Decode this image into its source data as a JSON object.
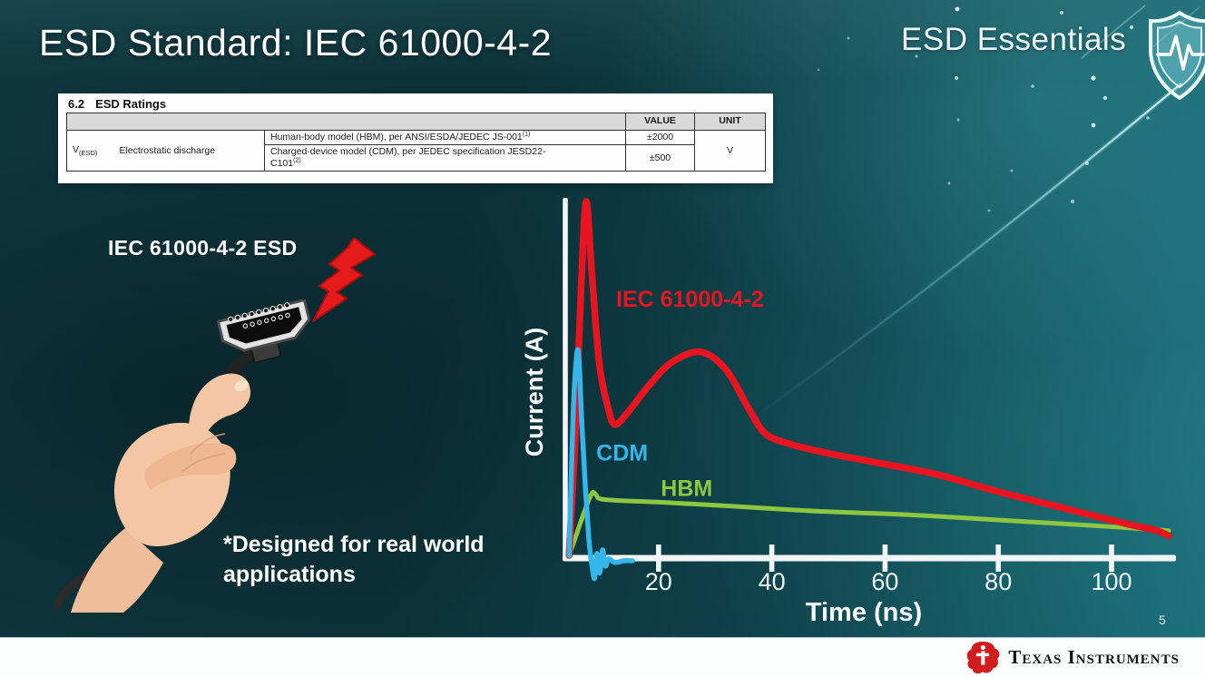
{
  "slide": {
    "title": "ESD Standard: IEC 61000-4-2",
    "page_number": "5"
  },
  "brand": {
    "series_title": "ESD Essentials"
  },
  "datasheet_table": {
    "section_number": "6.2",
    "section_title": "ESD Ratings",
    "value_header": "VALUE",
    "unit_header": "UNIT",
    "symbol": "V",
    "symbol_subscript": "(ESD)",
    "parameter": "Electrostatic discharge",
    "rows": [
      {
        "description": "Human-body model (HBM), per ANSI/ESDA/JEDEC JS-001",
        "footnote": "(1)",
        "value": "±2000"
      },
      {
        "description": "Charged-device model (CDM), per JEDEC specification JESD22-",
        "description_line2": "C101",
        "footnote": "(2)",
        "value": "±500"
      }
    ],
    "unit": "V"
  },
  "left_visual": {
    "label": "IEC 61000-4-2 ESD",
    "note_line1": "*Designed for real world",
    "note_line2": "applications"
  },
  "chart_data": {
    "type": "line",
    "title": "",
    "xlabel": "Time (ns)",
    "ylabel": "Current (A)",
    "x_ticks": [
      20,
      40,
      60,
      80,
      100
    ],
    "xlim": [
      0,
      110
    ],
    "ylim_relative": [
      -1,
      10.5
    ],
    "grid": false,
    "legend_position": "inline-labels",
    "series": [
      {
        "name": "IEC 61000-4-2",
        "color": "#e8141f",
        "width": 7.5,
        "points": [
          [
            4.2,
            0
          ],
          [
            5.3,
            3.4
          ],
          [
            6.3,
            7.5
          ],
          [
            7.2,
            10
          ],
          [
            8.2,
            8
          ],
          [
            9.5,
            5.45
          ],
          [
            11.1,
            4.15
          ],
          [
            12.3,
            3.7
          ],
          [
            14.6,
            4.05
          ],
          [
            18.3,
            4.8
          ],
          [
            22.3,
            5.45
          ],
          [
            27.4,
            5.75
          ],
          [
            31.9,
            5.25
          ],
          [
            35.9,
            4.15
          ],
          [
            38.8,
            3.45
          ],
          [
            43.1,
            3.15
          ],
          [
            49.5,
            2.9
          ],
          [
            57.5,
            2.65
          ],
          [
            68.8,
            2.3
          ],
          [
            80,
            1.8
          ],
          [
            91.2,
            1.35
          ],
          [
            102.4,
            0.9
          ],
          [
            108,
            0.7
          ],
          [
            110.1,
            0.55
          ]
        ]
      },
      {
        "name": "HBM",
        "color": "#8dc63f",
        "width": 5,
        "points": [
          [
            4.2,
            0
          ],
          [
            5.3,
            0.5
          ],
          [
            6.7,
            1.15
          ],
          [
            8.2,
            1.75
          ],
          [
            9,
            1.7
          ],
          [
            9.6,
            1.6
          ],
          [
            12.7,
            1.55
          ],
          [
            20.7,
            1.5
          ],
          [
            31.9,
            1.4
          ],
          [
            47.9,
            1.25
          ],
          [
            63.9,
            1.15
          ],
          [
            80,
            1
          ],
          [
            96,
            0.85
          ],
          [
            110.1,
            0.7
          ]
        ]
      },
      {
        "name": "CDM",
        "color": "#35b6ea",
        "width": 5.5,
        "points": [
          [
            4.2,
            0
          ],
          [
            4.6,
            2.35
          ],
          [
            5.1,
            4.65
          ],
          [
            5.8,
            5.8
          ],
          [
            6.4,
            3.9
          ],
          [
            7.1,
            1.85
          ],
          [
            7.7,
            0.45
          ],
          [
            8.2,
            -0.25
          ],
          [
            8.7,
            -0.65
          ],
          [
            9.1,
            0.05
          ],
          [
            9.6,
            -0.5
          ],
          [
            10.1,
            0.15
          ],
          [
            10.6,
            -0.3
          ],
          [
            11.2,
            -0.1
          ],
          [
            12.3,
            -0.2
          ],
          [
            13.9,
            -0.15
          ],
          [
            15.4,
            -0.15
          ]
        ]
      }
    ],
    "annotations": [
      {
        "text": "IEC 61000-4-2",
        "color": "#e8141f",
        "t": 12.5,
        "i": 7.2
      },
      {
        "text": "CDM",
        "color": "#35b6ea",
        "t": 9.0,
        "i": 2.85
      },
      {
        "text": "HBM",
        "color": "#8dc63f",
        "t": 20.4,
        "i": 1.85
      }
    ]
  },
  "footer": {
    "brand": "Texas Instruments"
  },
  "colors": {
    "slide_background": "#0d3840",
    "accent_red": "#e8141f",
    "accent_blue": "#35b6ea",
    "accent_green": "#8dc63f",
    "axis_white": "#f2f5f5",
    "ti_red": "#d01c1c"
  }
}
